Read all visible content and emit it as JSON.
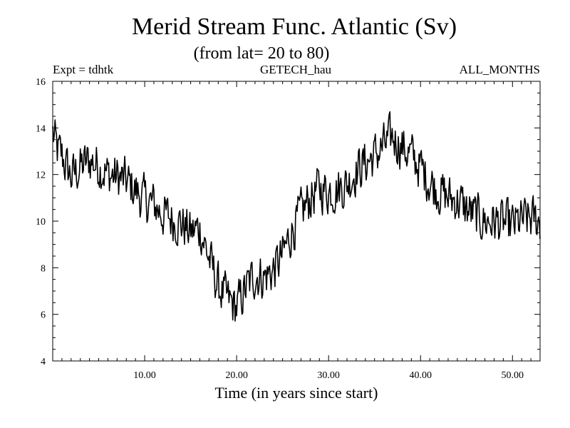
{
  "chart_data": {
    "type": "line",
    "title": "Merid Stream Func. Atlantic (Sv)",
    "subtitle": "(from lat= 20 to 80)",
    "header_left": "Expt = tdhtk",
    "header_center": "GETECH_hau",
    "header_right": "ALL_MONTHS",
    "xlabel": "Time (in years since start)",
    "ylabel": "",
    "xlim": [
      0,
      53
    ],
    "ylim": [
      4,
      16
    ],
    "x_ticks": [
      "10.00",
      "20.00",
      "30.00",
      "40.00",
      "50.00"
    ],
    "y_ticks": [
      "4",
      "6",
      "8",
      "10",
      "12",
      "14",
      "16"
    ],
    "grid": false,
    "series": [
      {
        "name": "Merid Stream Func. Atlantic",
        "sampling": "monthly values estimated from the plot; anchor points below give the annual-scale trajectory",
        "anchors_x": [
          0,
          0.5,
          1,
          1.5,
          2,
          3,
          4,
          5,
          6,
          7,
          8,
          9,
          10,
          11,
          12,
          13,
          14,
          15,
          16,
          17,
          18,
          19,
          20,
          21,
          22,
          23,
          24,
          25,
          26,
          27,
          28,
          29,
          30,
          31,
          32,
          33,
          34,
          35,
          36,
          37,
          38,
          39,
          40,
          41,
          42,
          43,
          44,
          45,
          46,
          47,
          48,
          49,
          50,
          51,
          52,
          53
        ],
        "anchors_y": [
          13.8,
          13.0,
          12.8,
          12.3,
          11.9,
          12.3,
          12.6,
          12.4,
          12.0,
          11.9,
          11.7,
          11.3,
          10.9,
          10.7,
          10.3,
          10.1,
          9.9,
          9.5,
          9.7,
          8.4,
          7.2,
          6.6,
          6.3,
          7.1,
          7.7,
          7.6,
          7.9,
          8.5,
          9.6,
          10.3,
          11.0,
          11.4,
          11.3,
          11.4,
          11.6,
          12.2,
          12.5,
          12.8,
          13.2,
          13.6,
          13.2,
          12.8,
          12.3,
          11.7,
          11.3,
          11.0,
          10.9,
          10.5,
          10.2,
          10.0,
          10.0,
          9.9,
          9.8,
          10.0,
          10.1,
          10.0
        ],
        "noise_amplitude": 0.9
      }
    ]
  }
}
